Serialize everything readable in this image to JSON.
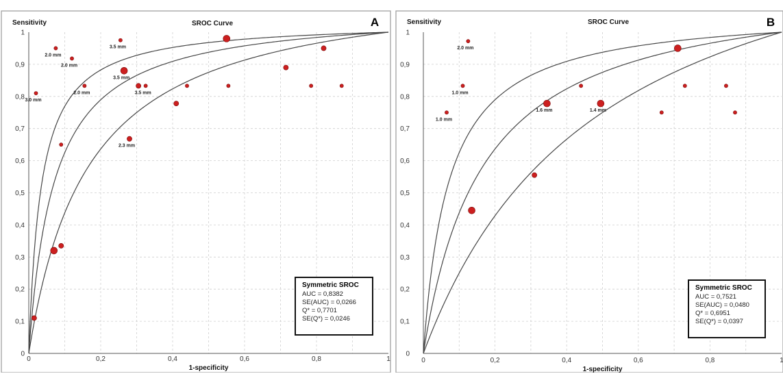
{
  "chart_data": [
    {
      "type": "scatter",
      "panel_label": "A",
      "title": "SROC Curve",
      "xlabel": "1-specificity",
      "ylabel": "Sensitivity",
      "xlim": [
        0,
        1
      ],
      "ylim": [
        0,
        1
      ],
      "grid": true,
      "x_ticks": [
        "0",
        "0,2",
        "0,4",
        "0,6",
        "0,8",
        "1"
      ],
      "y_ticks": [
        "0",
        "0,1",
        "0,2",
        "0,3",
        "0,4",
        "0,5",
        "0,6",
        "0,7",
        "0,8",
        "0,9",
        "1"
      ],
      "points": [
        {
          "x": 0.015,
          "y": 0.11,
          "size": 2,
          "label": ""
        },
        {
          "x": 0.07,
          "y": 0.32,
          "size": 3,
          "label": ""
        },
        {
          "x": 0.09,
          "y": 0.335,
          "size": 2,
          "label": ""
        },
        {
          "x": 0.09,
          "y": 0.65,
          "size": 1,
          "label": ""
        },
        {
          "x": 0.02,
          "y": 0.81,
          "size": 1,
          "label": "3.0 mm"
        },
        {
          "x": 0.075,
          "y": 0.95,
          "size": 1,
          "label": "2.0 mm"
        },
        {
          "x": 0.12,
          "y": 0.918,
          "size": 1,
          "label": "2.0 mm"
        },
        {
          "x": 0.155,
          "y": 0.833,
          "size": 1,
          "label": "2.0 mm"
        },
        {
          "x": 0.255,
          "y": 0.975,
          "size": 1,
          "label": "3.5 mm"
        },
        {
          "x": 0.265,
          "y": 0.88,
          "size": 3,
          "label": "3.5 mm"
        },
        {
          "x": 0.305,
          "y": 0.833,
          "size": 2,
          "label": ""
        },
        {
          "x": 0.325,
          "y": 0.833,
          "size": 1,
          "label": "3.5 mm"
        },
        {
          "x": 0.28,
          "y": 0.668,
          "size": 2,
          "label": "2.3 mm"
        },
        {
          "x": 0.41,
          "y": 0.778,
          "size": 2,
          "label": ""
        },
        {
          "x": 0.44,
          "y": 0.833,
          "size": 1,
          "label": ""
        },
        {
          "x": 0.55,
          "y": 0.98,
          "size": 3,
          "label": ""
        },
        {
          "x": 0.555,
          "y": 0.833,
          "size": 1,
          "label": ""
        },
        {
          "x": 0.715,
          "y": 0.89,
          "size": 2,
          "label": ""
        },
        {
          "x": 0.785,
          "y": 0.833,
          "size": 1,
          "label": ""
        },
        {
          "x": 0.82,
          "y": 0.95,
          "size": 2,
          "label": ""
        },
        {
          "x": 0.87,
          "y": 0.833,
          "size": 1,
          "label": ""
        }
      ],
      "legend": {
        "title": "Symmetric SROC",
        "lines": [
          "AUC = 0,8382",
          "SE(AUC) = 0,0266",
          "Q* = 0,7701",
          "SE(Q*) = 0,0246"
        ],
        "placement": "bottom-right"
      },
      "curves_dor": [
        30,
        15,
        7
      ]
    },
    {
      "type": "scatter",
      "panel_label": "B",
      "title": "SROC Curve",
      "xlabel": "1-specificity",
      "ylabel": "Sensitivity",
      "xlim": [
        0,
        1
      ],
      "ylim": [
        0,
        1
      ],
      "grid": true,
      "x_ticks": [
        "0",
        "0,2",
        "0,4",
        "0,6",
        "0,8",
        "1"
      ],
      "y_ticks": [
        "0",
        "0,1",
        "0,2",
        "0,3",
        "0,4",
        "0,5",
        "0,6",
        "0,7",
        "0,8",
        "0,9",
        "1"
      ],
      "points": [
        {
          "x": 0.065,
          "y": 0.75,
          "size": 1,
          "label": "1.0 mm"
        },
        {
          "x": 0.11,
          "y": 0.833,
          "size": 1,
          "label": "1.0 mm"
        },
        {
          "x": 0.125,
          "y": 0.972,
          "size": 1,
          "label": "2.0 mm"
        },
        {
          "x": 0.135,
          "y": 0.445,
          "size": 3,
          "label": ""
        },
        {
          "x": 0.31,
          "y": 0.555,
          "size": 2,
          "label": ""
        },
        {
          "x": 0.345,
          "y": 0.778,
          "size": 3,
          "label": "1.6 mm"
        },
        {
          "x": 0.44,
          "y": 0.833,
          "size": 1,
          "label": ""
        },
        {
          "x": 0.495,
          "y": 0.778,
          "size": 3,
          "label": "1.4 mm"
        },
        {
          "x": 0.665,
          "y": 0.75,
          "size": 1,
          "label": ""
        },
        {
          "x": 0.71,
          "y": 0.95,
          "size": 3,
          "label": ""
        },
        {
          "x": 0.73,
          "y": 0.833,
          "size": 1,
          "label": ""
        },
        {
          "x": 0.845,
          "y": 0.833,
          "size": 1,
          "label": ""
        },
        {
          "x": 0.87,
          "y": 0.75,
          "size": 1,
          "label": ""
        }
      ],
      "legend": {
        "title": "Symmetric SROC",
        "lines": [
          "AUC = 0,7521",
          "SE(AUC) = 0,0480",
          "Q* = 0,6951",
          "SE(Q*) = 0,0397"
        ],
        "placement": "bottom-right"
      },
      "curves_dor": [
        15,
        7,
        3
      ]
    }
  ],
  "colors": {
    "point": "#cc1f1f",
    "curve": "#444444",
    "grid": "#cfcfcf",
    "plot_bg": "#ffffff"
  }
}
